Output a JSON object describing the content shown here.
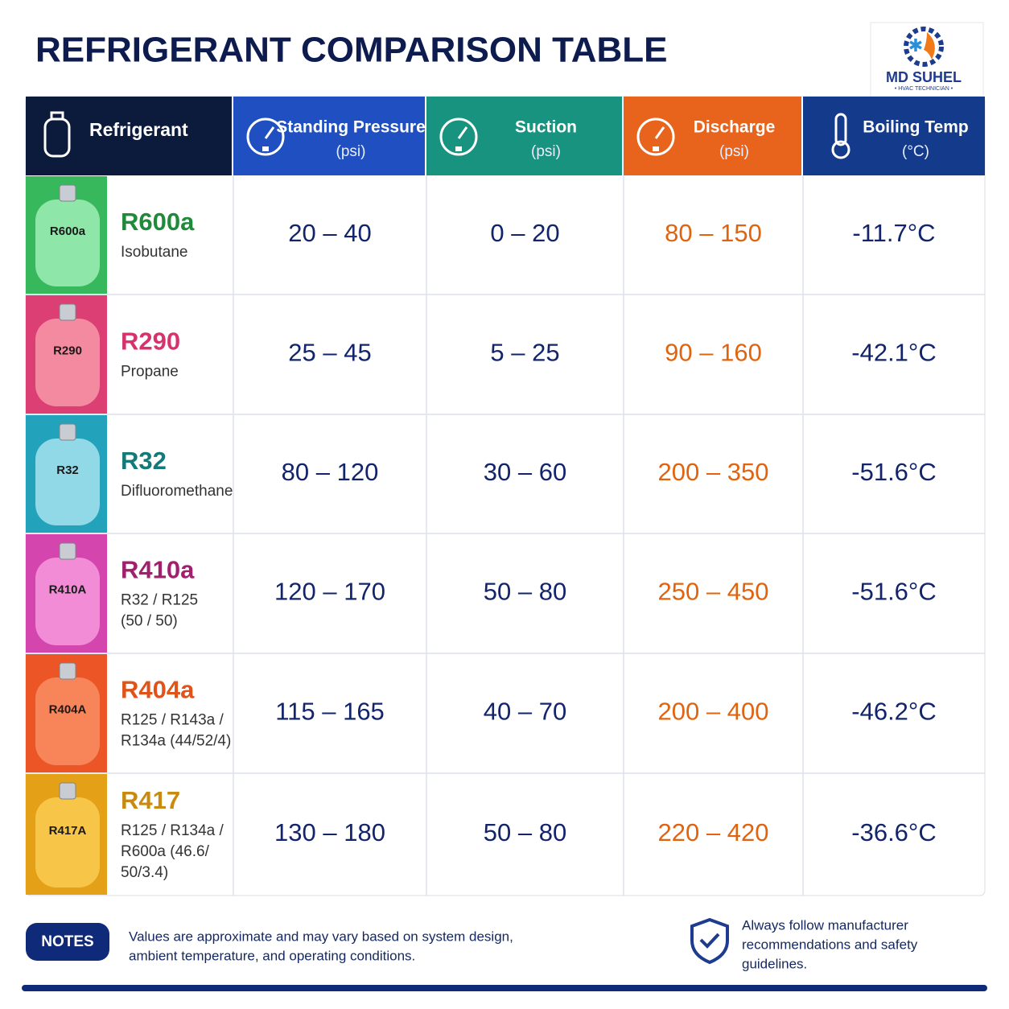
{
  "header": {
    "title": "REFRIGERANT COMPARISON TABLE",
    "logo": {
      "name": "MD SUHEL",
      "tagline": "• HVAC TECHNICIAN •"
    }
  },
  "table": {
    "columns": [
      {
        "label": "Refrigerant"
      },
      {
        "label": "Standing Pressure",
        "unit": "(psi)"
      },
      {
        "label": "Suction",
        "unit": "(psi)"
      },
      {
        "label": "Discharge",
        "unit": "(psi)"
      },
      {
        "label": "Boiling Temp",
        "unit": "(°C)"
      }
    ],
    "rows": [
      {
        "cylinder": "R600a",
        "name": "R600a",
        "description": [
          "Isobutane"
        ],
        "cells": [
          "20 – 40",
          "0 – 20",
          "80 – 150",
          "-11.7°C"
        ]
      },
      {
        "cylinder": "R290",
        "name": "R290",
        "description": [
          "Propane"
        ],
        "cells": [
          "25 – 45",
          "5 – 25",
          "90 – 160",
          "-42.1°C"
        ]
      },
      {
        "cylinder": "R32",
        "name": "R32",
        "description": [
          "Difluoromethane"
        ],
        "cells": [
          "80 – 120",
          "30 – 60",
          "200 – 350",
          "-51.6°C"
        ]
      },
      {
        "cylinder": "R410A",
        "name": "R410a",
        "description": [
          "R32 / R125",
          "(50 / 50)"
        ],
        "cells": [
          "120 – 170",
          "50 – 80",
          "250 – 450",
          "-51.6°C"
        ]
      },
      {
        "cylinder": "R404A",
        "name": "R404a",
        "description": [
          "R125 / R143a /",
          "R134a (44/52/4)"
        ],
        "cells": [
          "115 – 165",
          "40 – 70",
          "200 – 400",
          "-46.2°C"
        ]
      },
      {
        "cylinder": "R417A",
        "name": "R417",
        "description": [
          "R125 / R134a /",
          "R600a (46.6/",
          "50/3.4)"
        ],
        "cells": [
          "130 – 180",
          "50 – 80",
          "220 – 420",
          "-36.6°C"
        ]
      }
    ]
  },
  "notes": {
    "label": "NOTES",
    "text": [
      "Values are approximate and may vary based on system design,",
      "ambient temperature, and operating conditions."
    ]
  },
  "safety": {
    "text": [
      "Always follow manufacturer",
      "recommendations and safety",
      "guidelines."
    ]
  }
}
